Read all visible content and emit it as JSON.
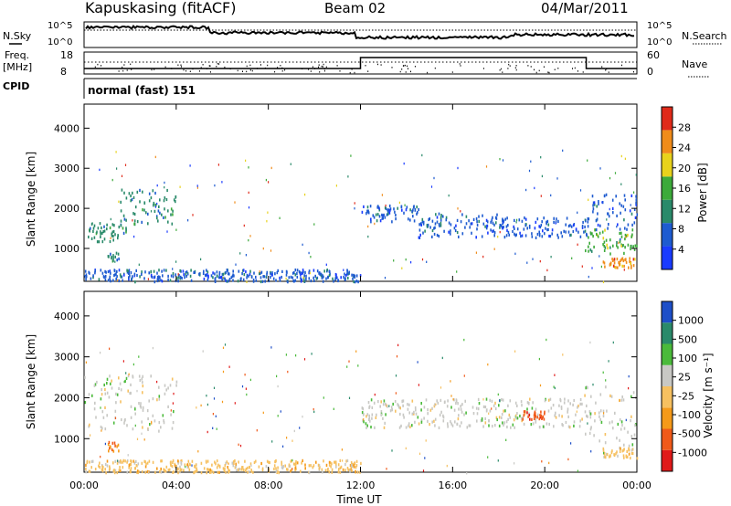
{
  "header": {
    "station": "Kapuskasing (fitACF)",
    "beam": "Beam 02",
    "date": "04/Mar/2011"
  },
  "nsky_panel": {
    "left_label": "N.Sky",
    "right_label": "N.Search",
    "ticks_left": [
      "10^5",
      "10^0"
    ],
    "ticks_right": [
      "10^5",
      "10^0"
    ]
  },
  "freq_panel": {
    "left_label_1": "Freq.",
    "left_label_2": "[MHz]",
    "left_ticks": [
      "18",
      "8"
    ],
    "right_label": "Nave",
    "right_ticks": [
      "60",
      "0"
    ]
  },
  "cpid_panel": {
    "label": "CPID",
    "program": "normal (fast) 151"
  },
  "chart_data": [
    {
      "type": "heatmap",
      "panel": "power",
      "ylabel": "Slant Range [km]",
      "yticks": [
        "1000",
        "2000",
        "3000",
        "4000"
      ],
      "ytick_values": [
        1000,
        2000,
        3000,
        4000
      ],
      "ylim": [
        180,
        4600
      ],
      "xlabel": "",
      "xlim": [
        0,
        24
      ],
      "colorbar_label": "Power [dB]",
      "colorbar_ticks": [
        "4",
        "8",
        "12",
        "16",
        "20",
        "24",
        "28"
      ],
      "colors": [
        "#1a3bff",
        "#1e5bd0",
        "#2a8a6a",
        "#3caa3a",
        "#e8d21c",
        "#f08c1a",
        "#e02a1a"
      ],
      "echo_regions": [
        {
          "t": [
            0.0,
            1.8
          ],
          "r": [
            1200,
            1700
          ],
          "level": 2
        },
        {
          "t": [
            1.5,
            4.0
          ],
          "r": [
            1600,
            2500
          ],
          "level": 2
        },
        {
          "t": [
            1.0,
            1.5
          ],
          "r": [
            700,
            950
          ],
          "level": 2
        },
        {
          "t": [
            12.0,
            14.5
          ],
          "r": [
            1700,
            2100
          ],
          "level": 1
        },
        {
          "t": [
            14.5,
            18.0
          ],
          "r": [
            1300,
            1900
          ],
          "level": 1
        },
        {
          "t": [
            18.0,
            22.0
          ],
          "r": [
            1300,
            1800
          ],
          "level": 1
        },
        {
          "t": [
            21.7,
            24.0
          ],
          "r": [
            900,
            1500
          ],
          "level": 3
        },
        {
          "t": [
            22.0,
            24.0
          ],
          "r": [
            1500,
            2400
          ],
          "level": 1
        },
        {
          "t": [
            22.5,
            24.0
          ],
          "r": [
            550,
            800
          ],
          "level": 5
        },
        {
          "t": [
            0.0,
            12.0
          ],
          "r": [
            200,
            500
          ],
          "level": 1
        }
      ]
    },
    {
      "type": "heatmap",
      "panel": "velocity",
      "ylabel": "Slant Range [km]",
      "yticks": [
        "1000",
        "2000",
        "3000",
        "4000"
      ],
      "ytick_values": [
        1000,
        2000,
        3000,
        4000
      ],
      "ylim": [
        180,
        4600
      ],
      "xlabel": "Time UT",
      "xticks": [
        "00:00",
        "04:00",
        "08:00",
        "12:00",
        "16:00",
        "20:00",
        "00:00"
      ],
      "xtick_values": [
        0,
        4,
        8,
        12,
        16,
        20,
        24
      ],
      "xlim": [
        0,
        24
      ],
      "colorbar_label": "Velocity [m s⁻¹]",
      "colorbar_ticks": [
        "-1000",
        "-500",
        "-100",
        "-25",
        "25",
        "100",
        "500",
        "1000"
      ],
      "colors": [
        "#e01a1a",
        "#f05a1a",
        "#f59a1a",
        "#f6c060",
        "#c8c8c4",
        "#4aba3a",
        "#2a8a6a",
        "#1e4fc8"
      ],
      "echo_regions": [
        {
          "t": [
            0.0,
            4.0
          ],
          "r": [
            1200,
            2600
          ],
          "level": 4
        },
        {
          "t": [
            1.0,
            1.5
          ],
          "r": [
            700,
            950
          ],
          "level": 2
        },
        {
          "t": [
            12.0,
            22.0
          ],
          "r": [
            1300,
            2000
          ],
          "level": 4
        },
        {
          "t": [
            19.0,
            20.0
          ],
          "r": [
            1500,
            1700
          ],
          "level": 1
        },
        {
          "t": [
            21.7,
            24.0
          ],
          "r": [
            800,
            2300
          ],
          "level": 4
        },
        {
          "t": [
            22.5,
            24.0
          ],
          "r": [
            550,
            800
          ],
          "level": 3
        },
        {
          "t": [
            0.0,
            12.0
          ],
          "r": [
            200,
            500
          ],
          "level": 3
        }
      ]
    }
  ]
}
